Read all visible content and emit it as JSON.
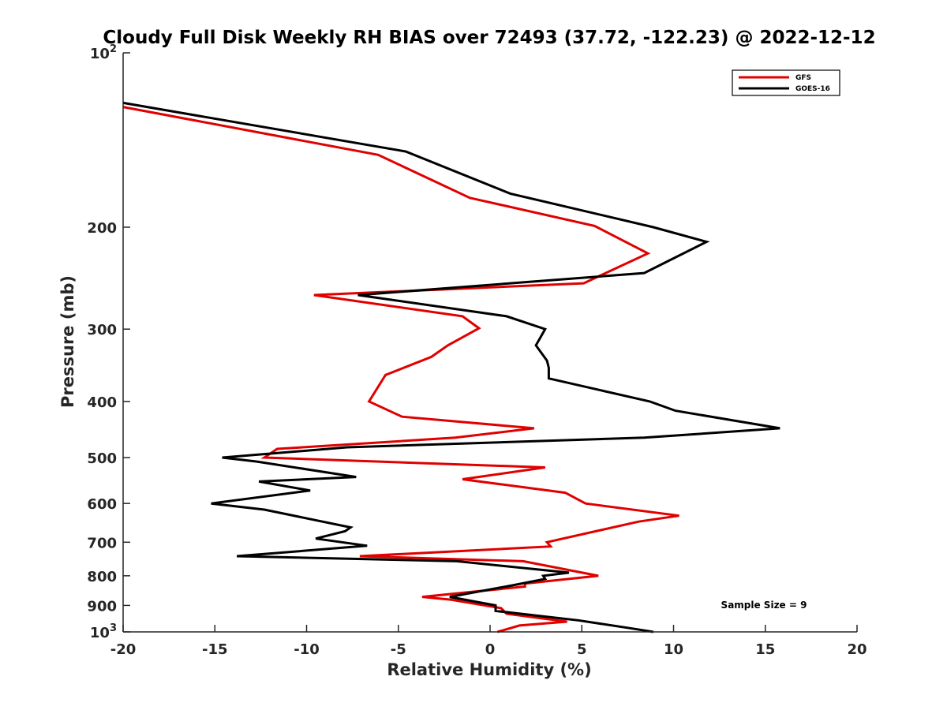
{
  "chart_data": {
    "type": "line",
    "title": "Cloudy Full Disk Weekly RH BIAS over 72493 (37.72, -122.23) @ 2022-12-12",
    "xlabel": "Relative Humidity (%)",
    "ylabel": "Pressure (mb)",
    "xlim": [
      -20,
      20
    ],
    "ylim": [
      100,
      1000
    ],
    "y_scale": "log",
    "y_reversed": true,
    "x_ticks": [
      -20,
      -15,
      -10,
      -5,
      0,
      5,
      10,
      15,
      20
    ],
    "x_tick_labels": [
      "-20",
      "-15",
      "-10",
      "-5",
      "0",
      "5",
      "10",
      "15",
      "20"
    ],
    "y_ticks": [
      100,
      200,
      300,
      400,
      500,
      600,
      700,
      800,
      900,
      1000
    ],
    "y_tick_labels": [
      {
        "base": "10",
        "exp": "2"
      },
      {
        "base": "200",
        "exp": ""
      },
      {
        "base": "300",
        "exp": ""
      },
      {
        "base": "400",
        "exp": ""
      },
      {
        "base": "500",
        "exp": ""
      },
      {
        "base": "600",
        "exp": ""
      },
      {
        "base": "700",
        "exp": ""
      },
      {
        "base": "800",
        "exp": ""
      },
      {
        "base": "900",
        "exp": ""
      },
      {
        "base": "10",
        "exp": "3"
      }
    ],
    "grid": false,
    "legend_position": "top-right",
    "series": [
      {
        "name": "GFS",
        "color": "#e00000",
        "x": [
          -20,
          -6.1,
          -1.1,
          5.7,
          8.6,
          5.1,
          -9.6,
          -1.5,
          -0.6,
          -2.3,
          -3.2,
          -5.7,
          -6.6,
          -4.8,
          2.4,
          -1.9,
          -11.6,
          -12.3,
          3.0,
          -1.5,
          4.1,
          5.2,
          10.3,
          8.1,
          3.1,
          3.3,
          -7.1,
          1.8,
          5.9,
          1.9,
          1.9,
          -3.7,
          -2.1,
          0.6,
          0.9,
          4.2,
          1.6,
          0.4
        ],
        "y": [
          124,
          150,
          178,
          199,
          222,
          250,
          262,
          285,
          299,
          320,
          335,
          360,
          400,
          425,
          445,
          462,
          483,
          500,
          520,
          545,
          575,
          600,
          630,
          645,
          700,
          712,
          740,
          755,
          800,
          825,
          835,
          870,
          880,
          910,
          930,
          960,
          975,
          1000
        ]
      },
      {
        "name": "GOES-16",
        "color": "#000000",
        "x": [
          -20,
          -4.6,
          1.1,
          8.9,
          11.8,
          8.4,
          -7.2,
          0.9,
          3.0,
          2.5,
          3.1,
          3.2,
          3.2,
          8.7,
          10.1,
          15.8,
          8.4,
          -7.8,
          -14.6,
          -12.7,
          -7.3,
          -12.6,
          -9.8,
          -15.2,
          -12.3,
          -7.6,
          -7.9,
          -9.5,
          -6.7,
          -13.8,
          -1.8,
          4.3,
          2.9,
          3.0,
          1.3,
          -2.2,
          0.3,
          0.3,
          4.8,
          7.6,
          8.9
        ],
        "y": [
          122,
          148,
          175,
          200,
          212,
          240,
          262,
          285,
          300,
          320,
          340,
          350,
          365,
          400,
          415,
          445,
          462,
          480,
          500,
          508,
          540,
          550,
          570,
          600,
          615,
          660,
          670,
          690,
          710,
          740,
          755,
          790,
          800,
          810,
          830,
          870,
          900,
          920,
          955,
          985,
          1000
        ]
      }
    ],
    "annotations": [
      {
        "text": "Sample Size = 9"
      }
    ]
  }
}
